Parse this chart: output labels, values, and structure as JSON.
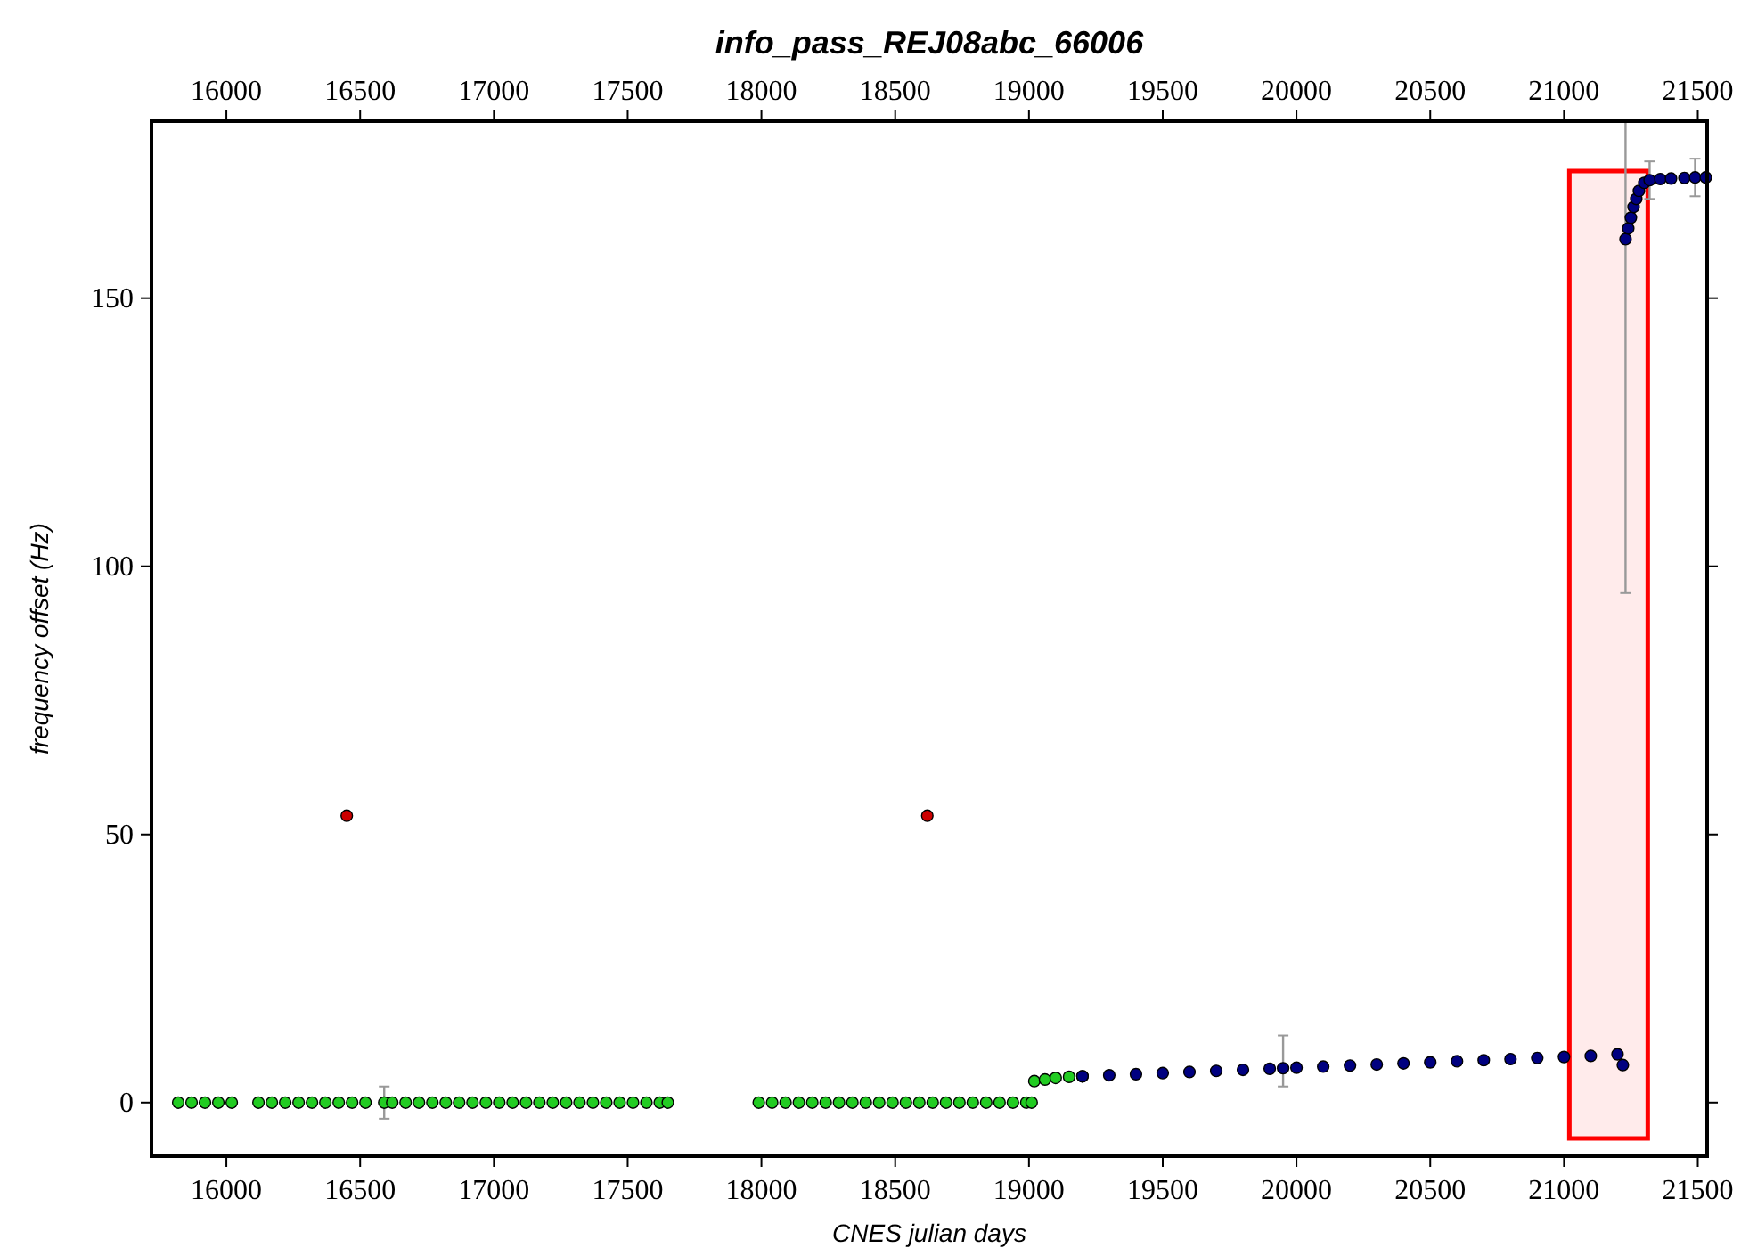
{
  "chart_data": {
    "type": "scatter",
    "title": "info_pass_REJ08abc_66006",
    "xlabel": "CNES julian days",
    "ylabel": "frequency offset (Hz)",
    "xlim": [
      15720,
      21535
    ],
    "xticks": [
      16000,
      16500,
      17000,
      17500,
      18000,
      18500,
      19000,
      19500,
      20000,
      20500,
      21000,
      21500
    ],
    "x2lim": [
      15720,
      21535
    ],
    "x2ticks": [
      16000,
      16500,
      17000,
      17500,
      18000,
      18500,
      19000,
      19500,
      20000,
      20500,
      21000,
      21500
    ],
    "ylim": [
      -10,
      183
    ],
    "yticks": [
      0,
      50,
      100,
      150
    ],
    "grid": false,
    "marker": "circle",
    "bands": [
      {
        "axis": "x",
        "from": 21020,
        "to": 21313,
        "color": "#ff0000"
      }
    ],
    "series": [
      {
        "color": "#22cc22",
        "x": [
          15820,
          15870,
          15920,
          15970,
          16020,
          16120,
          16170,
          16220,
          16270,
          16320,
          16370,
          16420,
          16470,
          16520,
          16590,
          16620,
          16670,
          16720,
          16770,
          16820,
          16870,
          16920,
          16970,
          17020,
          17070,
          17120,
          17170,
          17220,
          17270,
          17320,
          17370,
          17420,
          17470,
          17520,
          17570,
          17620,
          17650,
          17990,
          18040,
          18090,
          18140,
          18190,
          18240,
          18290,
          18340,
          18390,
          18440,
          18490,
          18540,
          18590,
          18640,
          18690,
          18740,
          18790,
          18840,
          18890,
          18940,
          18990,
          19010,
          19020,
          19060,
          19100,
          19150,
          19200
        ],
        "values": [
          0,
          0,
          0,
          0,
          0,
          0,
          0,
          0,
          0,
          0,
          0,
          0,
          0,
          0,
          0,
          0,
          0,
          0,
          0,
          0,
          0,
          0,
          0,
          0,
          0,
          0,
          0,
          0,
          0,
          0,
          0,
          0,
          0,
          0,
          0,
          0,
          0,
          0,
          0,
          0,
          0,
          0,
          0,
          0,
          0,
          0,
          0,
          0,
          0,
          0,
          0,
          0,
          0,
          0,
          0,
          0,
          0,
          0,
          0,
          4.0,
          4.3,
          4.6,
          4.8,
          4.9
        ],
        "errors": [
          null,
          null,
          null,
          null,
          null,
          null,
          null,
          null,
          null,
          null,
          null,
          null,
          null,
          null,
          3,
          null,
          null,
          null,
          null,
          null,
          null,
          null,
          null,
          null,
          null,
          null,
          null,
          null,
          null,
          null,
          null,
          null,
          null,
          null,
          null,
          null,
          null,
          null,
          null,
          null,
          null,
          null,
          null,
          null,
          null,
          null,
          null,
          null,
          null,
          null,
          null,
          null,
          null,
          null,
          null,
          null,
          null,
          null,
          null,
          null,
          null,
          null,
          null,
          null
        ]
      },
      {
        "color": "#cc0000",
        "x": [
          16450,
          18620
        ],
        "values": [
          53.5,
          53.5
        ]
      },
      {
        "color": "#000080",
        "x": [
          19200,
          19300,
          19400,
          19500,
          19600,
          19700,
          19800,
          19900,
          19950,
          20000,
          20100,
          20200,
          20300,
          20400,
          20500,
          20600,
          20700,
          20800,
          20900,
          21000,
          21100,
          21200,
          21220,
          21230,
          21240,
          21250,
          21260,
          21270,
          21280,
          21300,
          21320,
          21360,
          21400,
          21450,
          21490,
          21530
        ],
        "values": [
          4.9,
          5.1,
          5.3,
          5.5,
          5.7,
          5.9,
          6.1,
          6.3,
          6.4,
          6.5,
          6.7,
          6.9,
          7.1,
          7.3,
          7.5,
          7.7,
          7.9,
          8.1,
          8.3,
          8.5,
          8.7,
          9.0,
          7.0,
          161,
          163,
          165,
          167,
          168.5,
          170,
          171.5,
          172,
          172.2,
          172.3,
          172.4,
          172.5,
          172.5
        ],
        "errors": [
          null,
          null,
          null,
          null,
          null,
          null,
          null,
          null,
          [
            3,
            12.5
          ],
          null,
          null,
          null,
          null,
          null,
          null,
          null,
          null,
          null,
          null,
          null,
          null,
          null,
          null,
          [
            95,
            183
          ],
          null,
          null,
          null,
          null,
          null,
          null,
          [
            168.5,
            175.5
          ],
          null,
          null,
          null,
          [
            169,
            176
          ],
          null
        ]
      }
    ]
  }
}
